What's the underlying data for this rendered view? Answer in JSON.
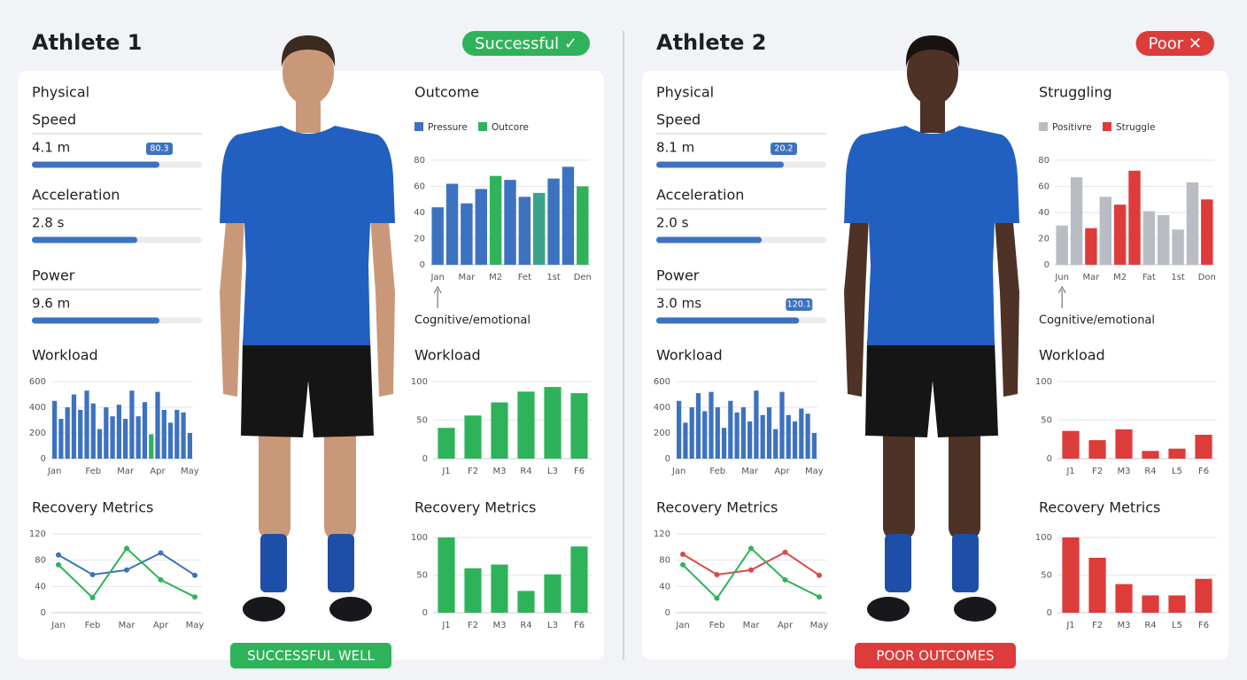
{
  "athletes": [
    {
      "name": "Athlete 1",
      "status": "Successful ✓",
      "footer": "SUCCESSFUL WELL",
      "theme_color": "#2fb35a",
      "physical": {
        "title": "Physical",
        "metrics": [
          {
            "label": "Speed",
            "value": "4.1 m",
            "progress": 75,
            "tooltip": "80.3"
          },
          {
            "label": "Acceleration",
            "value": "2.8 s",
            "progress": 62
          },
          {
            "label": "Power",
            "value": "9.6 m",
            "progress": 75
          }
        ]
      },
      "workload": {
        "type": "bar",
        "title": "Workload",
        "categories": [
          "Jan",
          null,
          null,
          null,
          null,
          null,
          "Feb",
          null,
          null,
          null,
          null,
          "Mar",
          null,
          null,
          null,
          null,
          "Apr",
          null,
          null,
          null,
          null,
          "May"
        ],
        "values": [
          450,
          310,
          400,
          500,
          380,
          530,
          430,
          230,
          400,
          330,
          420,
          310,
          530,
          330,
          440,
          190,
          520,
          380,
          280,
          380,
          360,
          200
        ],
        "colors": [
          "#3d72c0",
          "#3d72c0",
          "#3d72c0",
          "#3d72c0",
          "#3d72c0",
          "#3d72c0",
          "#3d72c0",
          "#3d72c0",
          "#3d72c0",
          "#3d72c0",
          "#3d72c0",
          "#3d72c0",
          "#3d72c0",
          "#3d72c0",
          "#3d72c0",
          "#2fb35a",
          "#3d72c0",
          "#3d72c0",
          "#3d72c0",
          "#3d72c0",
          "#3d72c0",
          "#3d72c0"
        ],
        "ylim": [
          0,
          600
        ],
        "yticks": [
          0,
          200,
          400,
          600
        ]
      },
      "recovery": {
        "type": "line",
        "title": "Recovery Metrics",
        "categories": [
          "Jan",
          "Feb",
          "Mar",
          "Apr",
          "May"
        ],
        "series": [
          {
            "color": "#3d72c0",
            "values": [
              88,
              58,
              65,
              91,
              57
            ]
          },
          {
            "color": "#2fb35a",
            "values": [
              73,
              23,
              98,
              50,
              24
            ]
          }
        ],
        "ylim": [
          0,
          120
        ],
        "yticks": [
          0,
          40,
          80,
          120
        ]
      },
      "outcome": {
        "type": "bar",
        "title": "Outcome",
        "legend": [
          {
            "name": "Pressure",
            "color": "#3d72c0"
          },
          {
            "name": "Outcore",
            "color": "#2fb35a"
          }
        ],
        "categories": [
          "Jan",
          null,
          "Mar",
          null,
          "M2",
          null,
          "Fet",
          null,
          "1st",
          null,
          "Den"
        ],
        "values": [
          44,
          62,
          47,
          58,
          68,
          65,
          52,
          55,
          66,
          75,
          60
        ],
        "colors": [
          "#3d72c0",
          "#3d72c0",
          "#3d72c0",
          "#3d72c0",
          "#2fb35a",
          "#3d72c0",
          "#3d72c0",
          "#3aa38a",
          "#3d72c0",
          "#3d72c0",
          "#2fb35a"
        ],
        "ylim": [
          0,
          80
        ],
        "yticks": [
          0,
          20,
          40,
          60,
          80
        ],
        "annotation": "Cognitive/emotional"
      },
      "workload_2": {
        "type": "bar",
        "title": "Workload",
        "categories": [
          "J1",
          "F2",
          "M3",
          "R4",
          "L3",
          "F6"
        ],
        "values": [
          40,
          56,
          73,
          87,
          93,
          85
        ],
        "color": "#2fb35a",
        "ylim": [
          0,
          100
        ],
        "yticks": [
          0,
          50,
          100
        ]
      },
      "recovery_2": {
        "type": "bar",
        "title": "Recovery Metrics",
        "categories": [
          "J1",
          "F2",
          "M3",
          "R4",
          "L3",
          "F6"
        ],
        "values": [
          100,
          59,
          64,
          29,
          51,
          88
        ],
        "color": "#2fb35a",
        "ylim": [
          0,
          100
        ],
        "yticks": [
          0,
          50,
          100
        ]
      }
    },
    {
      "name": "Athlete 2",
      "status": "Poor ✕",
      "footer": "POOR OUTCOMES",
      "theme_color": "#de3b3b",
      "physical": {
        "title": "Physical",
        "metrics": [
          {
            "label": "Speed",
            "value": "8.1 m",
            "progress": 75,
            "tooltip": "20.2"
          },
          {
            "label": "Acceleration",
            "value": "2.0 s",
            "progress": 62
          },
          {
            "label": "Power",
            "value": "3.0 ms",
            "progress": 84,
            "tooltip": "120.1"
          }
        ]
      },
      "workload": {
        "type": "bar",
        "title": "Workload",
        "categories": [
          "Jan",
          null,
          null,
          null,
          null,
          null,
          "Feb",
          null,
          null,
          null,
          null,
          "Mar",
          null,
          null,
          null,
          null,
          "Apr",
          null,
          null,
          null,
          null,
          "May"
        ],
        "values": [
          450,
          280,
          400,
          510,
          370,
          520,
          400,
          240,
          450,
          360,
          400,
          290,
          530,
          340,
          400,
          230,
          520,
          340,
          290,
          390,
          350,
          200
        ],
        "color": "#3d72c0",
        "ylim": [
          0,
          600
        ],
        "yticks": [
          0,
          200,
          400,
          600
        ]
      },
      "recovery": {
        "type": "line",
        "title": "Recovery Metrics",
        "categories": [
          "Jan",
          "Feb",
          "Mar",
          "Apr",
          "May"
        ],
        "series": [
          {
            "color": "#d84a44",
            "values": [
              89,
              58,
              65,
              92,
              57
            ]
          },
          {
            "color": "#2fb35a",
            "values": [
              73,
              22,
              98,
              50,
              24
            ]
          }
        ],
        "ylim": [
          0,
          120
        ],
        "yticks": [
          0,
          40,
          80,
          120
        ]
      },
      "outcome": {
        "type": "bar",
        "title": "Struggling",
        "legend": [
          {
            "name": "Positivre",
            "color": "#b9bcc3"
          },
          {
            "name": "Struggle",
            "color": "#de3b3b"
          }
        ],
        "categories": [
          "Jun",
          null,
          "Mar",
          null,
          "M2",
          null,
          "Fat",
          null,
          "1st",
          null,
          "Don"
        ],
        "values": [
          30,
          67,
          28,
          52,
          46,
          72,
          41,
          38,
          27,
          63,
          50
        ],
        "colors": [
          "#b9bcc3",
          "#b9bcc3",
          "#de3b3b",
          "#b9bcc3",
          "#de3b3b",
          "#de3b3b",
          "#b9bcc3",
          "#b9bcc3",
          "#b9bcc3",
          "#b9bcc3",
          "#de3b3b"
        ],
        "ylim": [
          0,
          80
        ],
        "yticks": [
          0,
          20,
          40,
          60,
          80
        ],
        "annotation": "Cognitive/emotional"
      },
      "workload_2": {
        "type": "bar",
        "title": "Workload",
        "categories": [
          "J1",
          "F2",
          "M3",
          "R4",
          "L5",
          "F6"
        ],
        "values": [
          36,
          24,
          38,
          10,
          13,
          31
        ],
        "color": "#de3b3b",
        "ylim": [
          0,
          100
        ],
        "yticks": [
          0,
          50,
          100
        ]
      },
      "recovery_2": {
        "type": "bar",
        "title": "Recovery Metrics",
        "categories": [
          "J1",
          "F2",
          "M3",
          "R4",
          "L5",
          "F6"
        ],
        "values": [
          100,
          73,
          38,
          23,
          23,
          45
        ],
        "color": "#de3b3b",
        "ylim": [
          0,
          100
        ],
        "yticks": [
          0,
          50,
          100
        ]
      }
    }
  ]
}
